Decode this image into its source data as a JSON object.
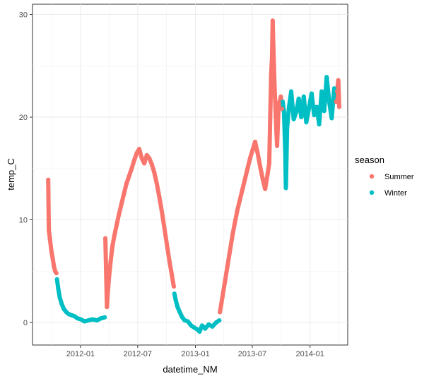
{
  "chart_data": {
    "type": "scatter",
    "xlabel": "datetime_NM",
    "ylabel": "temp_C",
    "x_ticks": [
      "2012-01",
      "2012-07",
      "2013-01",
      "2013-07",
      "2014-01"
    ],
    "y_ticks": [
      0,
      10,
      20,
      30
    ],
    "xlim": [
      "2011-08-01",
      "2014-05-01"
    ],
    "ylim": [
      -2.2,
      31
    ],
    "grid": true,
    "legend": {
      "title": "season",
      "placement": "right"
    },
    "series": [
      {
        "name": "Summer",
        "color": "#F8766D",
        "points": [
          [
            "2011-09-20",
            13.9
          ],
          [
            "2011-09-22",
            9.0
          ],
          [
            "2011-09-26",
            8.0
          ],
          [
            "2011-09-30",
            7.0
          ],
          [
            "2011-10-04",
            6.3
          ],
          [
            "2011-10-08",
            5.5
          ],
          [
            "2011-10-12",
            5.0
          ],
          [
            "2011-10-16",
            4.8
          ],
          [
            "2012-03-20",
            8.2
          ],
          [
            "2012-03-25",
            1.5
          ],
          [
            "2012-03-28",
            3.0
          ],
          [
            "2012-04-01",
            4.5
          ],
          [
            "2012-04-06",
            6.0
          ],
          [
            "2012-04-12",
            7.5
          ],
          [
            "2012-04-18",
            8.5
          ],
          [
            "2012-04-25",
            9.5
          ],
          [
            "2012-05-02",
            10.5
          ],
          [
            "2012-05-10",
            11.5
          ],
          [
            "2012-05-18",
            12.5
          ],
          [
            "2012-05-26",
            13.5
          ],
          [
            "2012-06-03",
            14.2
          ],
          [
            "2012-06-12",
            15.0
          ],
          [
            "2012-06-20",
            15.8
          ],
          [
            "2012-06-28",
            16.5
          ],
          [
            "2012-07-06",
            16.9
          ],
          [
            "2012-07-14",
            16.0
          ],
          [
            "2012-07-22",
            15.5
          ],
          [
            "2012-07-30",
            16.3
          ],
          [
            "2012-08-07",
            16.0
          ],
          [
            "2012-08-15",
            15.4
          ],
          [
            "2012-08-23",
            14.6
          ],
          [
            "2012-08-31",
            13.5
          ],
          [
            "2012-09-08",
            12.2
          ],
          [
            "2012-09-16",
            10.8
          ],
          [
            "2012-09-24",
            9.2
          ],
          [
            "2012-10-02",
            7.6
          ],
          [
            "2012-10-10",
            6.0
          ],
          [
            "2012-10-18",
            4.6
          ],
          [
            "2012-10-24",
            3.5
          ],
          [
            "2013-03-20",
            1.0
          ],
          [
            "2013-03-28",
            2.5
          ],
          [
            "2013-04-05",
            4.0
          ],
          [
            "2013-04-13",
            5.5
          ],
          [
            "2013-04-21",
            7.0
          ],
          [
            "2013-04-29",
            8.5
          ],
          [
            "2013-05-07",
            9.8
          ],
          [
            "2013-05-15",
            11.0
          ],
          [
            "2013-05-23",
            12.0
          ],
          [
            "2013-05-31",
            13.0
          ],
          [
            "2013-06-08",
            14.0
          ],
          [
            "2013-06-16",
            15.0
          ],
          [
            "2013-06-24",
            16.0
          ],
          [
            "2013-07-02",
            16.8
          ],
          [
            "2013-07-10",
            17.6
          ],
          [
            "2013-07-18",
            16.5
          ],
          [
            "2013-07-26",
            15.2
          ],
          [
            "2013-08-03",
            14.0
          ],
          [
            "2013-08-11",
            13.0
          ],
          [
            "2013-08-19",
            14.5
          ],
          [
            "2013-08-24",
            15.5
          ],
          [
            "2013-08-30",
            24.0
          ],
          [
            "2013-09-02",
            26.0
          ],
          [
            "2013-09-04",
            29.4
          ],
          [
            "2013-09-06",
            27.0
          ],
          [
            "2013-09-08",
            25.0
          ],
          [
            "2013-09-10",
            23.0
          ],
          [
            "2013-09-12",
            21.5
          ],
          [
            "2013-09-14",
            20.0
          ],
          [
            "2013-09-16",
            18.5
          ],
          [
            "2013-09-18",
            17.2
          ],
          [
            "2013-09-22",
            20.5
          ],
          [
            "2013-09-26",
            21.5
          ],
          [
            "2013-09-30",
            22.0
          ],
          [
            "2013-10-04",
            20.8
          ],
          [
            "2014-03-25",
            21.5
          ],
          [
            "2014-03-28",
            22.5
          ],
          [
            "2014-04-01",
            23.6
          ],
          [
            "2014-04-04",
            21.0
          ]
        ]
      },
      {
        "name": "Winter",
        "color": "#00BFC4",
        "points": [
          [
            "2011-10-18",
            4.2
          ],
          [
            "2011-10-22",
            3.3
          ],
          [
            "2011-10-27",
            2.4
          ],
          [
            "2011-11-02",
            1.8
          ],
          [
            "2011-11-09",
            1.3
          ],
          [
            "2011-11-17",
            1.0
          ],
          [
            "2011-11-25",
            0.8
          ],
          [
            "2011-12-04",
            0.7
          ],
          [
            "2011-12-13",
            0.6
          ],
          [
            "2011-12-22",
            0.4
          ],
          [
            "2012-01-02",
            0.3
          ],
          [
            "2012-01-14",
            0.1
          ],
          [
            "2012-01-26",
            0.2
          ],
          [
            "2012-02-08",
            0.3
          ],
          [
            "2012-02-22",
            0.2
          ],
          [
            "2012-03-06",
            0.4
          ],
          [
            "2012-03-18",
            0.5
          ],
          [
            "2012-10-26",
            2.8
          ],
          [
            "2012-10-30",
            2.2
          ],
          [
            "2012-11-05",
            1.5
          ],
          [
            "2012-11-12",
            1.0
          ],
          [
            "2012-11-20",
            0.5
          ],
          [
            "2012-11-28",
            0.2
          ],
          [
            "2012-12-08",
            0.1
          ],
          [
            "2012-12-18",
            -0.3
          ],
          [
            "2012-12-28",
            -0.5
          ],
          [
            "2013-01-08",
            -0.7
          ],
          [
            "2013-01-14",
            -0.9
          ],
          [
            "2013-01-22",
            -0.3
          ],
          [
            "2013-02-01",
            -0.6
          ],
          [
            "2013-02-12",
            -0.2
          ],
          [
            "2013-02-24",
            -0.4
          ],
          [
            "2013-03-08",
            0.0
          ],
          [
            "2013-03-18",
            0.2
          ],
          [
            "2013-10-06",
            21.5
          ],
          [
            "2013-10-10",
            20.5
          ],
          [
            "2013-10-14",
            16.7
          ],
          [
            "2013-10-16",
            13.1
          ],
          [
            "2013-10-20",
            19.0
          ],
          [
            "2013-10-26",
            21.0
          ],
          [
            "2013-11-02",
            22.5
          ],
          [
            "2013-11-10",
            19.8
          ],
          [
            "2013-11-18",
            20.5
          ],
          [
            "2013-11-26",
            21.8
          ],
          [
            "2013-12-04",
            20.0
          ],
          [
            "2013-12-12",
            22.0
          ],
          [
            "2013-12-20",
            19.5
          ],
          [
            "2013-12-28",
            20.8
          ],
          [
            "2014-01-06",
            22.3
          ],
          [
            "2014-01-14",
            20.2
          ],
          [
            "2014-01-22",
            21.0
          ],
          [
            "2014-01-30",
            19.3
          ],
          [
            "2014-02-07",
            22.5
          ],
          [
            "2014-02-15",
            20.6
          ],
          [
            "2014-02-23",
            23.9
          ],
          [
            "2014-03-03",
            21.5
          ],
          [
            "2014-03-11",
            19.9
          ],
          [
            "2014-03-19",
            22.8
          ]
        ]
      }
    ]
  }
}
